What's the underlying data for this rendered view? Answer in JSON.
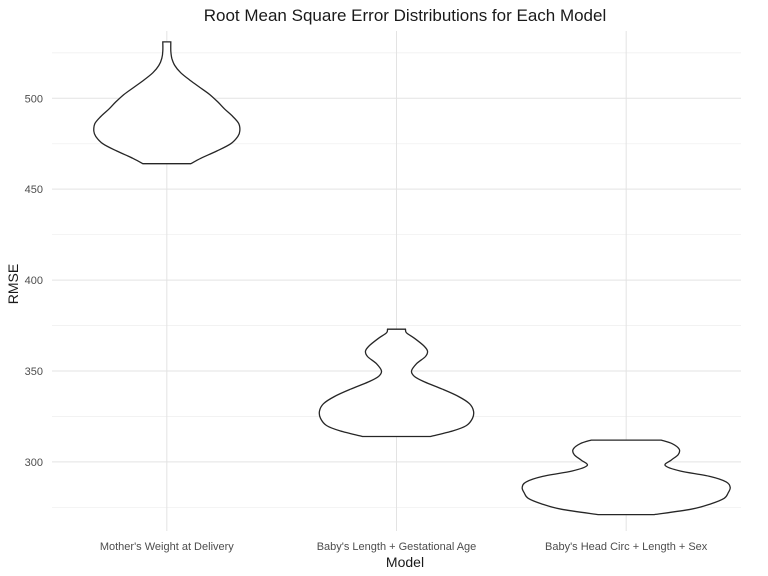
{
  "chart_data": {
    "type": "violin",
    "title": "Root Mean Square Error Distributions for Each Model",
    "xlabel": "Model",
    "ylabel": "RMSE",
    "ylim": [
      262,
      537
    ],
    "yticks": [
      300,
      350,
      400,
      450,
      500
    ],
    "yminor": [
      275,
      325,
      375,
      425,
      475,
      525
    ],
    "grid": true,
    "categories": [
      "Mother's Weight at Delivery",
      "Baby's Length + Gestational Age",
      "Baby's Head Circ + Length + Sex"
    ],
    "series": [
      {
        "category": "Mother's Weight at Delivery",
        "min": 464,
        "max": 531,
        "profile": [
          [
            464,
            24
          ],
          [
            467,
            34
          ],
          [
            471,
            50
          ],
          [
            475,
            64
          ],
          [
            479,
            71
          ],
          [
            482,
            73
          ],
          [
            486,
            72
          ],
          [
            490,
            66
          ],
          [
            494,
            58
          ],
          [
            498,
            51
          ],
          [
            502,
            43
          ],
          [
            506,
            33
          ],
          [
            510,
            23
          ],
          [
            514,
            14
          ],
          [
            518,
            8
          ],
          [
            522,
            5
          ],
          [
            526,
            4
          ],
          [
            531,
            4
          ]
        ]
      },
      {
        "category": "Baby's Length + Gestational Age",
        "min": 314,
        "max": 373,
        "profile": [
          [
            314,
            34
          ],
          [
            317,
            56
          ],
          [
            320,
            70
          ],
          [
            324,
            76
          ],
          [
            328,
            77
          ],
          [
            332,
            73
          ],
          [
            336,
            62
          ],
          [
            340,
            46
          ],
          [
            344,
            28
          ],
          [
            347,
            18
          ],
          [
            350,
            15
          ],
          [
            354,
            20
          ],
          [
            358,
            29
          ],
          [
            361,
            31
          ],
          [
            364,
            27
          ],
          [
            368,
            18
          ],
          [
            371,
            10
          ],
          [
            373,
            9
          ]
        ]
      },
      {
        "category": "Baby's Head Circ + Length + Sex",
        "min": 271,
        "max": 312,
        "profile": [
          [
            271,
            28
          ],
          [
            274,
            65
          ],
          [
            277,
            85
          ],
          [
            280,
            98
          ],
          [
            283,
            102
          ],
          [
            286,
            104
          ],
          [
            289,
            100
          ],
          [
            292,
            84
          ],
          [
            295,
            54
          ],
          [
            298,
            39
          ],
          [
            301,
            45
          ],
          [
            304,
            52
          ],
          [
            307,
            53
          ],
          [
            310,
            46
          ],
          [
            312,
            35
          ]
        ]
      }
    ]
  }
}
